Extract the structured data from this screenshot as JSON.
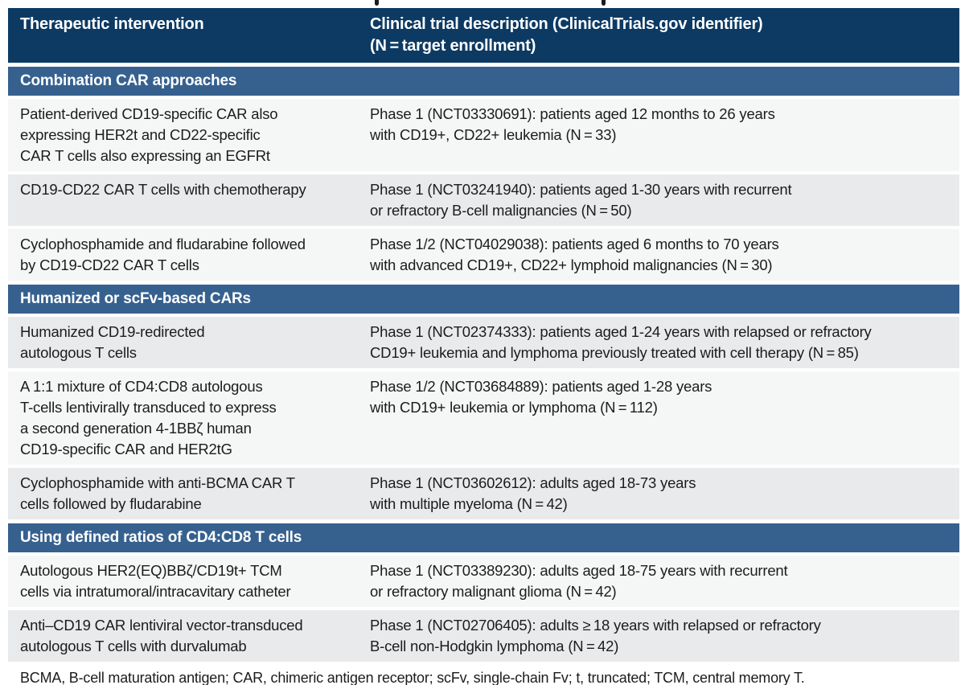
{
  "colors": {
    "header_bg": "#0d3a63",
    "section_bg": "#36618f",
    "row_light": "#f5f7f6",
    "row_gray": "#e8eaec",
    "header_text": "#ffffff",
    "body_text": "#1c1c1c"
  },
  "table": {
    "columns": {
      "intervention": "Therapeutic intervention",
      "description": "Clinical trial description (ClinicalTrials.gov identifier)\n(N = target enrollment)"
    },
    "sections": [
      {
        "title": "Combination CAR approaches",
        "rows": [
          {
            "intervention": "Patient-derived CD19-specific CAR also\nexpressing HER2t and CD22-specific\nCAR T cells also expressing an EGFRt",
            "description": "Phase 1 (NCT03330691): patients aged 12 months to 26 years\nwith CD19+, CD22+ leukemia (N = 33)"
          },
          {
            "intervention": "CD19-CD22 CAR T cells with chemotherapy",
            "description": "Phase 1 (NCT03241940): patients aged 1-30 years with recurrent\nor refractory B-cell malignancies (N = 50)"
          },
          {
            "intervention": "Cyclophosphamide and fludarabine followed\nby CD19-CD22 CAR T cells",
            "description": "Phase 1/2 (NCT04029038): patients aged 6 months to 70 years\nwith advanced CD19+, CD22+ lymphoid malignancies (N = 30)"
          }
        ]
      },
      {
        "title": "Humanized or scFv-based CARs",
        "rows": [
          {
            "intervention": "Humanized CD19-redirected\nautologous T cells",
            "description": "Phase 1 (NCT02374333): patients aged 1-24 years with relapsed or refractory\nCD19+ leukemia and lymphoma previously treated with cell therapy (N = 85)"
          },
          {
            "intervention": "A 1:1 mixture of CD4:CD8 autologous\nT-cells lentivirally transduced to express\na second generation 4-1BBζ human\nCD19-specific CAR and HER2tG",
            "description": "Phase 1/2 (NCT03684889): patients aged 1-28 years\nwith CD19+ leukemia or lymphoma (N = 112)"
          },
          {
            "intervention": "Cyclophosphamide with anti-BCMA CAR T\ncells followed by fludarabine",
            "description": "Phase 1 (NCT03602612): adults aged 18-73 years\nwith multiple myeloma (N = 42)"
          }
        ]
      },
      {
        "title": "Using defined ratios of CD4:CD8 T cells",
        "rows": [
          {
            "intervention": "Autologous HER2(EQ)BBζ/CD19t+ TCM\ncells via intratumoral/intracavitary catheter",
            "description": "Phase 1 (NCT03389230): adults aged 18-75 years with recurrent\nor refractory malignant glioma (N = 42)"
          },
          {
            "intervention": "Anti–CD19 CAR lentiviral vector-transduced\nautologous T cells with durvalumab",
            "description": "Phase 1 (NCT02706405): adults ≥ 18 years with relapsed or refractory\nB-cell non-Hodgkin lymphoma (N = 42)"
          }
        ]
      }
    ],
    "footnote": "BCMA, B-cell maturation antigen; CAR, chimeric antigen receptor; scFv, single-chain Fv; t, truncated; TCM, central memory T."
  }
}
